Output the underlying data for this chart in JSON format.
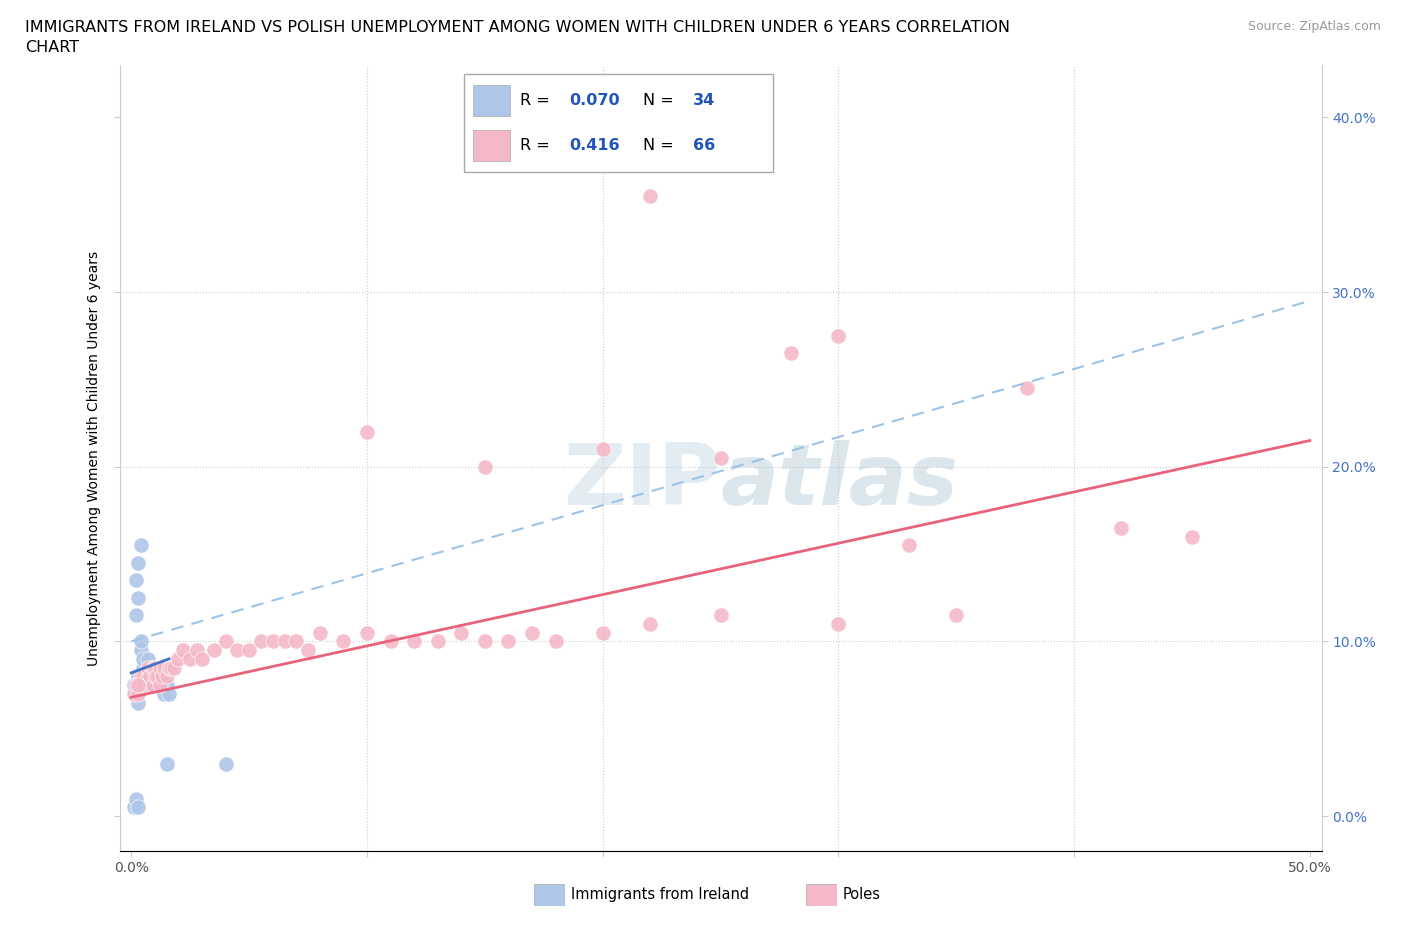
{
  "title_line1": "IMMIGRANTS FROM IRELAND VS POLISH UNEMPLOYMENT AMONG WOMEN WITH CHILDREN UNDER 6 YEARS CORRELATION",
  "title_line2": "CHART",
  "source": "Source: ZipAtlas.com",
  "ylabel": "Unemployment Among Women with Children Under 6 years",
  "x_ticks": [
    0.0,
    0.1,
    0.2,
    0.3,
    0.4,
    0.5
  ],
  "x_tick_labels": [
    "0.0%",
    "",
    "",
    "",
    "",
    "50.0%"
  ],
  "y_ticks": [
    0.0,
    0.1,
    0.2,
    0.3,
    0.4
  ],
  "y_tick_labels_right": [
    "0.0%",
    "10.0%",
    "20.0%",
    "30.0%",
    "40.0%"
  ],
  "xlim": [
    -0.005,
    0.505
  ],
  "ylim": [
    -0.02,
    0.43
  ],
  "watermark": "ZIPatlas",
  "legend_ireland_R": "0.070",
  "legend_ireland_N": "34",
  "legend_poles_R": "0.416",
  "legend_poles_N": "66",
  "ireland_color": "#aec6e8",
  "poles_color": "#f4b8c8",
  "ireland_line_color": "#4472c4",
  "ireland_dash_color": "#9dc3e6",
  "poles_line_color": "#e8637c",
  "ireland_scatter": [
    [
      0.001,
      0.075
    ],
    [
      0.002,
      0.07
    ],
    [
      0.003,
      0.065
    ],
    [
      0.003,
      0.08
    ],
    [
      0.004,
      0.095
    ],
    [
      0.004,
      0.1
    ],
    [
      0.005,
      0.085
    ],
    [
      0.005,
      0.09
    ],
    [
      0.006,
      0.075
    ],
    [
      0.006,
      0.08
    ],
    [
      0.007,
      0.085
    ],
    [
      0.007,
      0.09
    ],
    [
      0.008,
      0.08
    ],
    [
      0.008,
      0.085
    ],
    [
      0.009,
      0.08
    ],
    [
      0.009,
      0.085
    ],
    [
      0.01,
      0.075
    ],
    [
      0.01,
      0.08
    ],
    [
      0.011,
      0.075
    ],
    [
      0.012,
      0.08
    ],
    [
      0.013,
      0.075
    ],
    [
      0.014,
      0.07
    ],
    [
      0.015,
      0.075
    ],
    [
      0.016,
      0.07
    ],
    [
      0.002,
      0.135
    ],
    [
      0.003,
      0.145
    ],
    [
      0.004,
      0.155
    ],
    [
      0.002,
      0.115
    ],
    [
      0.003,
      0.125
    ],
    [
      0.001,
      0.005
    ],
    [
      0.002,
      0.01
    ],
    [
      0.003,
      0.005
    ],
    [
      0.015,
      0.03
    ],
    [
      0.04,
      0.03
    ]
  ],
  "poles_scatter": [
    [
      0.001,
      0.07
    ],
    [
      0.002,
      0.075
    ],
    [
      0.003,
      0.07
    ],
    [
      0.004,
      0.08
    ],
    [
      0.005,
      0.075
    ],
    [
      0.005,
      0.08
    ],
    [
      0.006,
      0.075
    ],
    [
      0.007,
      0.08
    ],
    [
      0.007,
      0.085
    ],
    [
      0.008,
      0.075
    ],
    [
      0.008,
      0.08
    ],
    [
      0.009,
      0.075
    ],
    [
      0.009,
      0.085
    ],
    [
      0.01,
      0.08
    ],
    [
      0.01,
      0.085
    ],
    [
      0.011,
      0.08
    ],
    [
      0.012,
      0.075
    ],
    [
      0.012,
      0.085
    ],
    [
      0.013,
      0.08
    ],
    [
      0.014,
      0.085
    ],
    [
      0.015,
      0.08
    ],
    [
      0.016,
      0.085
    ],
    [
      0.017,
      0.085
    ],
    [
      0.018,
      0.085
    ],
    [
      0.02,
      0.09
    ],
    [
      0.022,
      0.095
    ],
    [
      0.025,
      0.09
    ],
    [
      0.028,
      0.095
    ],
    [
      0.03,
      0.09
    ],
    [
      0.035,
      0.095
    ],
    [
      0.04,
      0.1
    ],
    [
      0.045,
      0.095
    ],
    [
      0.05,
      0.095
    ],
    [
      0.055,
      0.1
    ],
    [
      0.06,
      0.1
    ],
    [
      0.065,
      0.1
    ],
    [
      0.07,
      0.1
    ],
    [
      0.075,
      0.095
    ],
    [
      0.08,
      0.105
    ],
    [
      0.09,
      0.1
    ],
    [
      0.1,
      0.105
    ],
    [
      0.11,
      0.1
    ],
    [
      0.12,
      0.1
    ],
    [
      0.13,
      0.1
    ],
    [
      0.14,
      0.105
    ],
    [
      0.15,
      0.1
    ],
    [
      0.16,
      0.1
    ],
    [
      0.17,
      0.105
    ],
    [
      0.18,
      0.1
    ],
    [
      0.2,
      0.105
    ],
    [
      0.22,
      0.11
    ],
    [
      0.25,
      0.115
    ],
    [
      0.28,
      0.265
    ],
    [
      0.3,
      0.11
    ],
    [
      0.33,
      0.155
    ],
    [
      0.25,
      0.205
    ],
    [
      0.2,
      0.21
    ],
    [
      0.22,
      0.355
    ],
    [
      0.3,
      0.275
    ],
    [
      0.38,
      0.245
    ],
    [
      0.42,
      0.165
    ],
    [
      0.45,
      0.16
    ],
    [
      0.1,
      0.22
    ],
    [
      0.15,
      0.2
    ],
    [
      0.35,
      0.115
    ],
    [
      0.003,
      0.075
    ]
  ],
  "ireland_trendline_solid": [
    [
      0.0,
      0.082
    ],
    [
      0.016,
      0.09
    ]
  ],
  "ireland_trendline_dash": [
    [
      0.0,
      0.1
    ],
    [
      0.5,
      0.295
    ]
  ],
  "poles_trendline": [
    [
      0.0,
      0.068
    ],
    [
      0.5,
      0.215
    ]
  ]
}
